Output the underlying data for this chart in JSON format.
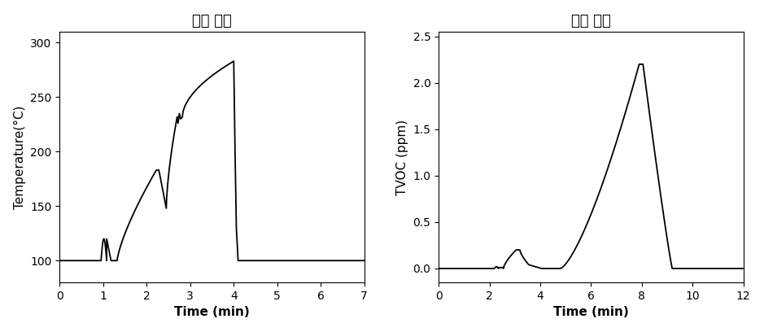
{
  "left_title": "발열 특성",
  "right_title": "감지 특성",
  "left_xlabel": "Time (min)",
  "left_ylabel": "Temperature(°C)",
  "right_xlabel": "Time (min)",
  "right_ylabel": "TVOC (ppm)",
  "left_xlim": [
    0,
    7
  ],
  "left_ylim": [
    80,
    310
  ],
  "left_xticks": [
    0,
    1,
    2,
    3,
    4,
    5,
    6,
    7
  ],
  "left_yticks": [
    100,
    150,
    200,
    250,
    300
  ],
  "right_xlim": [
    0,
    12
  ],
  "right_ylim": [
    -0.15,
    2.55
  ],
  "right_xticks": [
    0,
    2,
    4,
    6,
    8,
    10,
    12
  ],
  "right_yticks": [
    0.0,
    0.5,
    1.0,
    1.5,
    2.0,
    2.5
  ],
  "line_color": "#000000",
  "bg_color": "#ffffff",
  "title_fontsize": 13,
  "label_fontsize": 11,
  "tick_fontsize": 10
}
